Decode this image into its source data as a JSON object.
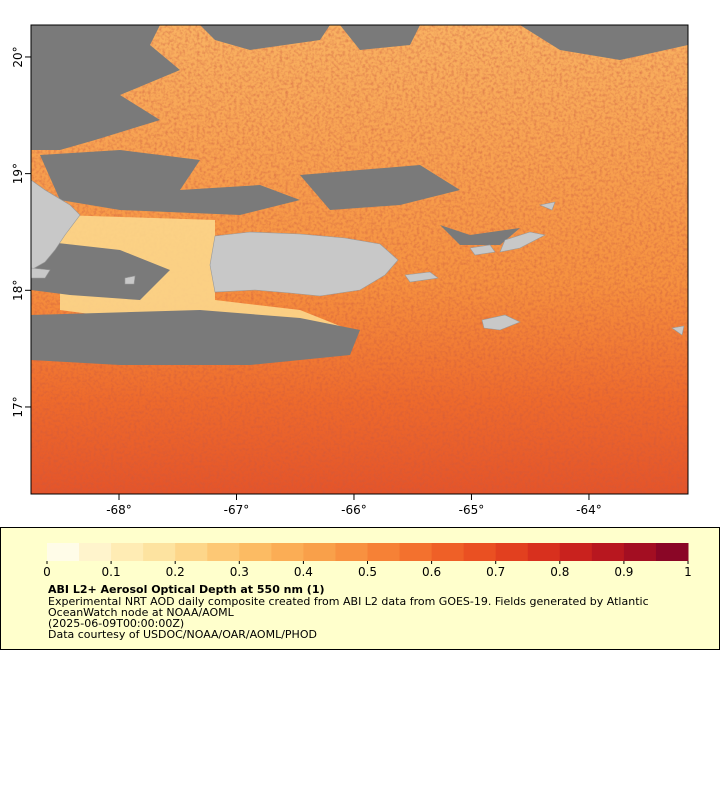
{
  "map": {
    "xlim": [
      -68.749,
      -63.157
    ],
    "ylim": [
      16.254,
      20.274
    ],
    "xticks": [
      {
        "value": -68,
        "label": "-68°"
      },
      {
        "value": -67,
        "label": "-67°"
      },
      {
        "value": -66,
        "label": "-66°"
      },
      {
        "value": -65,
        "label": "-65°"
      },
      {
        "value": -64,
        "label": "-64°"
      }
    ],
    "yticks": [
      {
        "value": 17,
        "label": "17°"
      },
      {
        "value": 18,
        "label": "18°"
      },
      {
        "value": 19,
        "label": "19°"
      },
      {
        "value": 20,
        "label": "20°"
      }
    ]
  },
  "colorbar": {
    "title": "ABI L2+ Aerosol Optical Depth at 550 nm (1)",
    "lim": [
      0,
      1
    ],
    "ticks": [
      0,
      0.1,
      0.2,
      0.3,
      0.4,
      0.5,
      0.6,
      0.7,
      0.8,
      0.9,
      1
    ],
    "colors": [
      "#fffce8",
      "#fff4cc",
      "#ffecb4",
      "#fde3a0",
      "#fdd68a",
      "#fdc875",
      "#fcbb63",
      "#fbad55",
      "#f9a04a",
      "#f89140",
      "#f68136",
      "#f3712e",
      "#ef6027",
      "#ea5022",
      "#e2401f",
      "#d8301e",
      "#c9221e",
      "#b8171f",
      "#a30e22",
      "#8a0626"
    ]
  },
  "notes": [
    "Experimental NRT AOD daily composite created from ABI L2 data from GOES-19. Fields generated by Atlantic",
    "OceanWatch node at NOAA/AOML",
    "(2025-06-09T00:00:00Z)",
    "Data courtesy of USDOC/NOAA/OAR/AOML/PHOD"
  ]
}
